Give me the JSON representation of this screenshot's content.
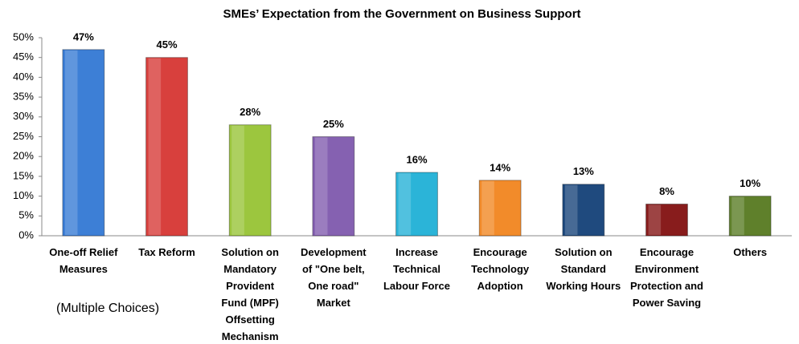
{
  "chart_data": {
    "type": "bar",
    "title": "SMEs’ Expectation from the Government on Business Support",
    "annotation": "(Multiple Choices)",
    "categories": [
      "One-off Relief Measures",
      "Tax Reform",
      "Solution on Mandatory Provident Fund (MPF) Offsetting Mechanism",
      "Development of \"One belt, One road\" Market",
      "Increase Technical Labour Force",
      "Encourage Technology Adoption",
      "Solution on Standard Working Hours",
      "Encourage Environment Protection and Power Saving",
      "Others"
    ],
    "values": [
      47,
      45,
      28,
      25,
      16,
      14,
      13,
      8,
      10
    ],
    "value_labels": [
      "47%",
      "45%",
      "28%",
      "25%",
      "16%",
      "14%",
      "13%",
      "8%",
      "10%"
    ],
    "colors": [
      "#3d7fd6",
      "#d8403d",
      "#9cc63e",
      "#8561b1",
      "#2bb4d8",
      "#f28b2a",
      "#1f4a7e",
      "#881c1c",
      "#5f802b"
    ],
    "ylim": [
      0,
      50
    ],
    "yticks": [
      {
        "value": 0,
        "label": "0%"
      },
      {
        "value": 5,
        "label": "5%"
      },
      {
        "value": 10,
        "label": "10%"
      },
      {
        "value": 15,
        "label": "15%"
      },
      {
        "value": 20,
        "label": "20%"
      },
      {
        "value": 25,
        "label": "25%"
      },
      {
        "value": 30,
        "label": "30%"
      },
      {
        "value": 35,
        "label": "35%"
      },
      {
        "value": 40,
        "label": "40%"
      },
      {
        "value": 45,
        "label": "45%"
      },
      {
        "value": 50,
        "label": "50%"
      }
    ]
  }
}
